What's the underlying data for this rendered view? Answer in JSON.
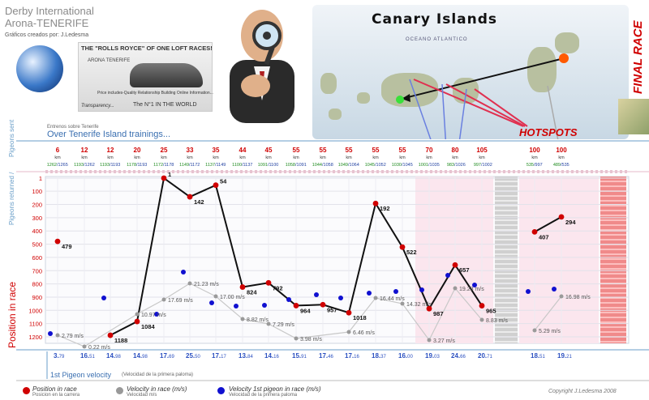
{
  "header": {
    "title_line1": "Derby International",
    "title_line2": "Arona-TENERIFE",
    "subtitle": "Gráficos creados por: J.Ledesma"
  },
  "ad": {
    "headline": "THE \"ROLLS ROYCE\" OF ONE LOFT RACES!",
    "brand": "ARONA TENERIFE",
    "small_text": "Price includes-Quality Relationship Building Online Information...",
    "transparency": "Transparency...",
    "number_one": "The N°1 IN THE WORLD"
  },
  "map": {
    "title": "Canary Islands",
    "ocean_label": "OCEANO ATLANTICO",
    "hotspots_label": "HOTSPOTS",
    "final_race_label": "FINAL RACE"
  },
  "axis_labels": {
    "pigeons_sent": "Pigeons sent",
    "pigeons_returned": "Pigeons returned /",
    "position": "Position in race"
  },
  "trainings": {
    "small": "Entrenos sobre Tenerife",
    "main": "Over Tenerife Island trainings..."
  },
  "velocity_section": {
    "title": "1st Pigeon velocity",
    "subtitle": "(Velocidad de la primera paloma)"
  },
  "legend": {
    "item1_title": "Position in race",
    "item1_sub": "Posicion en la carrera",
    "item2_title": "Velocity in race (m/s)",
    "item2_sub": "Velocidad m/s",
    "item3_title": "Velocity 1st pigeon in race (m/s)",
    "item3_sub": "Velocidad de la primera paloma"
  },
  "copyright": "Copyright J.Ledesma 2008",
  "colors": {
    "position": "#d00000",
    "velocity": "#9a9a9a",
    "first_velocity": "#1010d0",
    "km_text": "#d00000",
    "returned_text": "#1f8a1f",
    "sent_text": "#1f3fa0"
  },
  "chart_data": {
    "type": "line",
    "ylabel": "Position in race",
    "y_ticks": [
      "1",
      "100",
      "200",
      "300",
      "400",
      "500",
      "600",
      "700",
      "800",
      "900",
      "1000",
      "1100",
      "1200"
    ],
    "ylim": [
      1,
      1250
    ],
    "y_inverted": true,
    "races": [
      {
        "km": "6",
        "returned": "1262",
        "sent": "1265",
        "position": 479,
        "vel_label": "2.79 m/s",
        "first_vel": "3.79"
      },
      {
        "km": "12",
        "returned": "1193",
        "sent": "1262",
        "position": null,
        "vel_label": "0.22 m/s",
        "first_vel": "16.51"
      },
      {
        "km": "12",
        "returned": "1193",
        "sent": "1193",
        "position": 1188,
        "vel_label": null,
        "first_vel": "14.98"
      },
      {
        "km": "20",
        "returned": "1178",
        "sent": "1193",
        "position": 1084,
        "vel_label": "10.97 m/s",
        "first_vel": "14.98"
      },
      {
        "km": "25",
        "returned": "1172",
        "sent": "1178",
        "position": 1,
        "vel_label": "17.69 m/s",
        "first_vel": "17.69"
      },
      {
        "km": "33",
        "returned": "1149",
        "sent": "1172",
        "position": 142,
        "vel_label": "21.23 m/s",
        "first_vel": "25.50"
      },
      {
        "km": "35",
        "returned": "1137",
        "sent": "1149",
        "position": 54,
        "vel_label": "17.00 m/s",
        "first_vel": "17.17"
      },
      {
        "km": "44",
        "returned": "1100",
        "sent": "1137",
        "position": 824,
        "vel_label": "8.82 m/s",
        "first_vel": "13.84"
      },
      {
        "km": "45",
        "returned": "1091",
        "sent": "1100",
        "position": 792,
        "vel_label": "7.29 m/s",
        "first_vel": "14.16"
      },
      {
        "km": "55",
        "returned": "1058",
        "sent": "1091",
        "position": 964,
        "vel_label": "3.98 m/s",
        "first_vel": "15.91"
      },
      {
        "km": "55",
        "returned": "1044",
        "sent": "1058",
        "position": 957,
        "vel_label": null,
        "first_vel": "17.46"
      },
      {
        "km": "55",
        "returned": "1049",
        "sent": "1064",
        "position": 1018,
        "vel_label": "6.46 m/s",
        "first_vel": "17.16"
      },
      {
        "km": "55",
        "returned": "1045",
        "sent": "1052",
        "position": 192,
        "vel_label": "16.44 m/s",
        "first_vel": "18.37"
      },
      {
        "km": "55",
        "returned": "1030",
        "sent": "1045",
        "position": 522,
        "vel_label": "14.32 m/s",
        "first_vel": "16.00"
      },
      {
        "km": "70",
        "returned": "1001",
        "sent": "1035",
        "position": 987,
        "vel_label": "3.27 m/s",
        "first_vel": "19.03"
      },
      {
        "km": "80",
        "returned": "983",
        "sent": "1026",
        "position": 657,
        "vel_label": "19.28 m/s",
        "first_vel": "24.66"
      },
      {
        "km": "105",
        "returned": "997",
        "sent": "1002",
        "position": 965,
        "vel_label": "8.83 m/s",
        "first_vel": "20.71"
      },
      {
        "km": "100",
        "returned": "535",
        "sent": "997",
        "position": 407,
        "vel_label": "5.29 m/s",
        "first_vel": "18.51"
      },
      {
        "km": "100",
        "returned": "489",
        "sent": "535",
        "position": 294,
        "vel_label": "16.98 m/s",
        "first_vel": "19.21"
      }
    ],
    "km_unit": "km"
  }
}
